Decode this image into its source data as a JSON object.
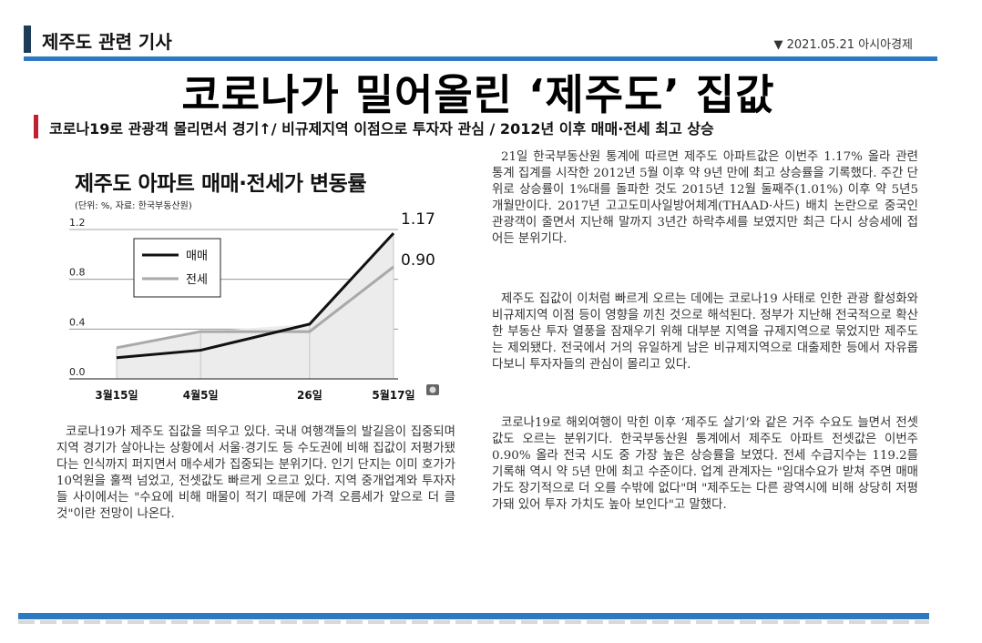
{
  "section": {
    "title": "제주도 관련 기사",
    "date_source": "▼ 2021.05.21 아시아경제"
  },
  "headline": "코로나가 밀어올린 ‘제주도’ 집값",
  "subheadline": "코로나19로 관광객 몰리면서 경기↑/ 비규제지역 이점으로 투자자 관심 / 2012년 이후 매매·전세 최고 상승",
  "chart_data": {
    "type": "line",
    "title": "제주도 아파트 매매·전세가 변동률",
    "unit_note": "(단위: %, 자료: 한국부동산원)",
    "categories": [
      "3월15일",
      "4월5일",
      "26일",
      "5월17일"
    ],
    "x_positions": [
      0,
      1,
      2.3,
      3.3
    ],
    "yticks": [
      "0.0",
      "0.4",
      "0.8",
      "1.2"
    ],
    "ylim": [
      0,
      1.2
    ],
    "series": [
      {
        "name": "매매",
        "values": [
          0.17,
          0.23,
          0.44,
          1.17
        ],
        "color": "#111111",
        "end_label": "1.17"
      },
      {
        "name": "전세",
        "values": [
          0.25,
          0.38,
          0.38,
          0.9
        ],
        "color": "#a9a9a9",
        "end_label": "0.90"
      }
    ],
    "legend_position": "top-left"
  },
  "article": {
    "left_paragraph": "코로나19가 제주도 집값을 띄우고 있다. 국내 여행객들의 발길음이 집중되며 지역 경기가 살아나는 상황에서 서울·경기도 등 수도권에 비해 집값이 저평가됐다는 인식까지 퍼지면서 매수세가 집중되는 분위기다. 인기 단지는 이미 호가가 10억원을 훌쩍 넘었고, 전셋값도 빠르게 오르고 있다. 지역 중개업계와 투자자들 사이에서는 \"수요에 비해 매물이 적기 때문에 가격 오름세가 앞으로 더 클 것\"이란 전망이 나온다.",
    "right_paragraphs": [
      "21일 한국부동산원 통계에 따르면 제주도 아파트값은 이번주 1.17% 올라 관련 통계 집계를 시작한 2012년 5월 이후 약 9년 만에 최고 상승률을 기록했다. 주간 단위로 상승률이 1%대를 돌파한 것도 2015년 12월 둘째주(1.01%) 이후 약 5년5개월만이다. 2017년 고고도미사일방어체계(THAAD·사드) 배치 논란으로 중국인 관광객이 줄면서 지난해 말까지 3년간 하락추세를 보였지만 최근 다시 상승세에 접어든 분위기다.",
      "제주도 집값이 이처럼 빠르게 오르는 데에는 코로나19 사태로 인한 관광 활성화와 비규제지역 이점 등이 영향을 끼친 것으로 해석된다. 정부가 지난해 전국적으로 확산한 부동산 투자 열풍을 잠재우기 위해 대부분 지역을 규제지역으로 묶었지만 제주도는 제외됐다. 전국에서 거의 유일하게 남은 비규제지역으로 대출제한 등에서 자유롭다보니 투자자들의 관심이 몰리고 있다.",
      "코로나19로 해외여행이 막힌 이후 ‘제주도 살기’와 같은 거주 수요도 늘면서 전셋값도 오르는 분위기다. 한국부동산원 통계에서 제주도 아파트 전셋값은 이번주 0.90% 올라 전국 시도 중 가장 높은 상승률을 보였다. 전세 수급지수는 119.2를 기록해 역시 약 5년 만에 최고 수준이다. 업계 관계자는 \"임대수요가 받쳐 주면 매매가도 장기적으로 더 오를 수밖에 없다\"며 \"제주도는 다른 광역시에 비해 상당히 저평가돼 있어 투자 가치도 높아 보인다\"고 말했다."
    ]
  }
}
